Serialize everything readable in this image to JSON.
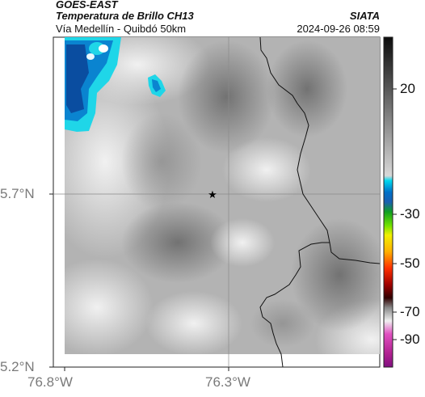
{
  "header": {
    "satellite": "GOES-EAST",
    "product": "Temperatura de Brillo CH13",
    "source": "SIATA",
    "region": "Vía Medellín - Quibdó 50km",
    "datetime": "2024-09-26 08:59"
  },
  "axes": {
    "y_ticks": [
      "5.7°N",
      "5.2°N"
    ],
    "x_ticks": [
      "76.8°W",
      "76.3°W"
    ]
  },
  "colorbar": {
    "ticks": [
      "20",
      "-30",
      "-50",
      "-70",
      "-90"
    ]
  },
  "map": {
    "marker": "star-icon",
    "colors": {
      "cold_blue": "#0a4da0",
      "cyan": "#1fd6e8",
      "gray_light": "#e6e6e6",
      "gray_dark": "#6a6a6a",
      "border": "#111111"
    }
  }
}
